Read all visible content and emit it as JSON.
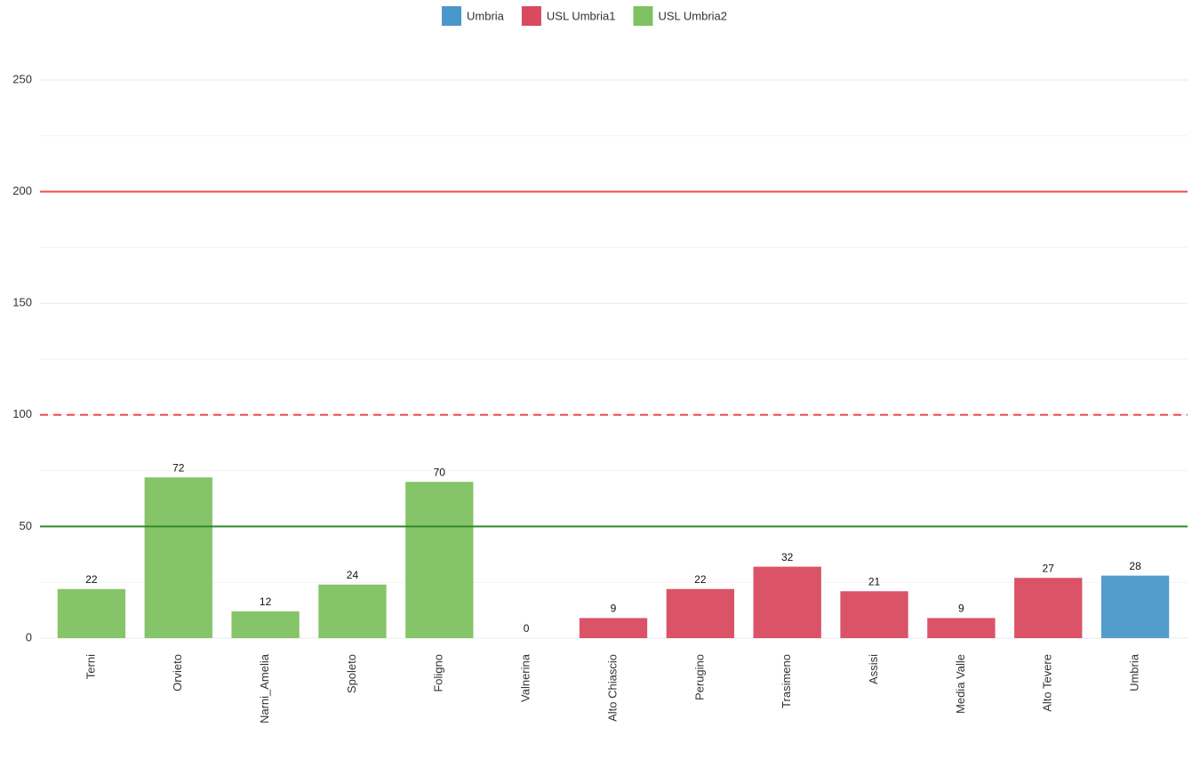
{
  "chart_data": {
    "type": "bar",
    "categories": [
      "Terni",
      "Orvieto",
      "Narni_Amelia",
      "Spoleto",
      "Foligno",
      "Valnerina",
      "Alto Chiascio",
      "Perugino",
      "Trasimeno",
      "Assisi",
      "Media Valle",
      "Alto Tevere",
      "Umbria"
    ],
    "series": [
      {
        "name": "Umbria",
        "color": "#4a98c9",
        "values": [
          null,
          null,
          null,
          null,
          null,
          null,
          null,
          null,
          null,
          null,
          null,
          null,
          28
        ]
      },
      {
        "name": "USL Umbria1",
        "color": "#d94a5f",
        "values": [
          null,
          null,
          null,
          null,
          null,
          null,
          9,
          22,
          32,
          21,
          9,
          27,
          null
        ]
      },
      {
        "name": "USL Umbria2",
        "color": "#7fc161",
        "values": [
          22,
          72,
          12,
          24,
          70,
          0,
          null,
          null,
          null,
          null,
          null,
          null,
          null
        ]
      }
    ],
    "ylim": [
      0,
      250
    ],
    "yticks": [
      0,
      50,
      100,
      150,
      200,
      250
    ],
    "grid": true,
    "legend": "top",
    "reference_lines": [
      {
        "value": 200,
        "color": "#f04a4a",
        "dashed": false
      },
      {
        "value": 100,
        "color": "#f04a4a",
        "dashed": true
      },
      {
        "value": 50,
        "color": "#2e8b2e",
        "dashed": false
      }
    ]
  }
}
